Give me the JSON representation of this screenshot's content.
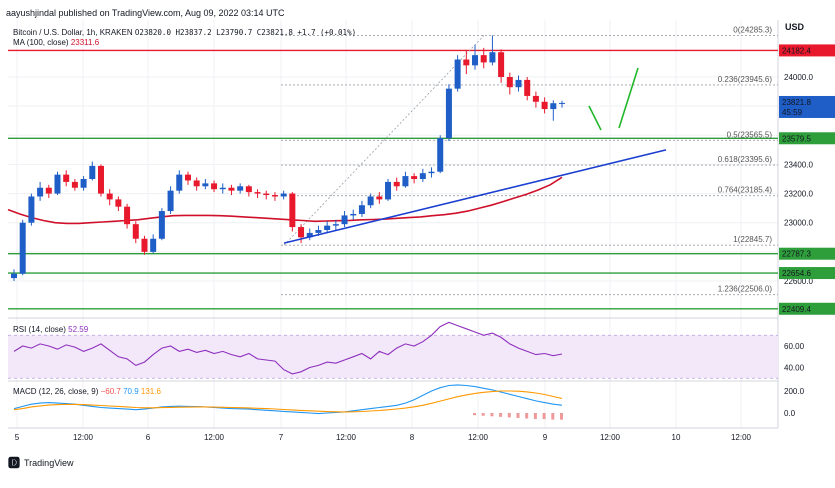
{
  "publisher": "aayushjindal published on TradingView.com, Aug 09, 2022 03:14 UTC",
  "currency": "USD",
  "brand": "TradingView",
  "main_legend": {
    "symbol": "Bitcoin / U.S. Dollar, 1h, KRAKEN",
    "ohlc": "O23820.0 H23837.2 L23790.7 C23821.8 +1.7 (+0.01%)",
    "ma": "MA (100, close)",
    "ma_value": "23311.6"
  },
  "rsi_legend": {
    "name": "RSI (14, close)",
    "value": "52.59"
  },
  "macd_legend": {
    "name": "MACD (12, 26, close, 9)",
    "v1": "−60.7",
    "v2": "70.9",
    "v3": "131.6"
  },
  "price_tag": {
    "value": "23821.8",
    "countdown": "45:59"
  },
  "fib_labels": [
    {
      "ratio": "0",
      "price": "24285.3",
      "value": 24285.3
    },
    {
      "ratio": "0.236",
      "price": "23945.6",
      "value": 23945.6
    },
    {
      "ratio": "0.5",
      "price": "23565.5",
      "value": 23565.5
    },
    {
      "ratio": "0.618",
      "price": "23395.6",
      "value": 23395.6
    },
    {
      "ratio": "0.764",
      "price": "23185.4",
      "value": 23185.4
    },
    {
      "ratio": "1",
      "price": "22845.7",
      "value": 22845.7
    },
    {
      "ratio": "1.236",
      "price": "22506.0",
      "value": 22506.0
    }
  ],
  "resistance_levels": [
    {
      "label": "24182.4",
      "value": 24182.4,
      "color": "#e8192c"
    },
    {
      "label": "23579.5",
      "value": 23579.5,
      "color": "#2e9e3a"
    },
    {
      "label": "22787.3",
      "value": 22787.3,
      "color": "#2e9e3a"
    },
    {
      "label": "22654.6",
      "value": 22654.6,
      "color": "#2e9e3a"
    },
    {
      "label": "22409.4",
      "value": 22409.4,
      "color": "#2e9e3a"
    }
  ],
  "colors": {
    "up": "#1f5ec7",
    "down": "#e8192c",
    "ma": "#d0102a",
    "trend": "#1a3fcf",
    "forecast": "#22b82a",
    "rsi": "#8e2fbd",
    "macd": "#2196f3",
    "signal": "#ff9800"
  },
  "chart_data": {
    "type": "candlestick",
    "price_axis_ticks": [
      "24000.0",
      "23800.0",
      "23600.0",
      "23400.0",
      "23200.0",
      "23000.0",
      "22800.0",
      "22600.0"
    ],
    "price_axis_values": [
      24000,
      23800,
      23600,
      23400,
      23200,
      23000,
      22800,
      22600
    ],
    "time_axis_labels": [
      "5",
      "12:00",
      "6",
      "12:00",
      "7",
      "12:00",
      "8",
      "12:00",
      "9",
      "12:00",
      "10",
      "12:00"
    ],
    "rsi_axis_ticks": [
      "60.00",
      "40.00"
    ],
    "rsi_axis_values": [
      60,
      40
    ],
    "macd_axis_ticks": [
      "200.0",
      "0.0"
    ],
    "macd_axis_values": [
      200,
      0
    ],
    "candles": [
      [
        22620,
        22650,
        22600,
        22680
      ],
      [
        22650,
        23000,
        22640,
        23020
      ],
      [
        23000,
        23180,
        22980,
        23200
      ],
      [
        23180,
        23240,
        23150,
        23280
      ],
      [
        23240,
        23200,
        23170,
        23260
      ],
      [
        23200,
        23330,
        23190,
        23350
      ],
      [
        23330,
        23280,
        23250,
        23360
      ],
      [
        23280,
        23240,
        23220,
        23300
      ],
      [
        23240,
        23300,
        23220,
        23320
      ],
      [
        23300,
        23390,
        23290,
        23420
      ],
      [
        23390,
        23200,
        23180,
        23400
      ],
      [
        23200,
        23160,
        23120,
        23230
      ],
      [
        23160,
        23110,
        23080,
        23180
      ],
      [
        23110,
        22990,
        22960,
        23130
      ],
      [
        22990,
        22890,
        22860,
        23010
      ],
      [
        22890,
        22800,
        22780,
        22910
      ],
      [
        22800,
        22890,
        22790,
        22920
      ],
      [
        22890,
        23080,
        22880,
        23100
      ],
      [
        23080,
        23220,
        23060,
        23250
      ],
      [
        23220,
        23330,
        23200,
        23360
      ],
      [
        23330,
        23290,
        23260,
        23350
      ],
      [
        23290,
        23250,
        23220,
        23310
      ],
      [
        23250,
        23270,
        23230,
        23300
      ],
      [
        23270,
        23230,
        23210,
        23290
      ],
      [
        23230,
        23240,
        23200,
        23270
      ],
      [
        23240,
        23220,
        23190,
        23260
      ],
      [
        23220,
        23250,
        23200,
        23270
      ],
      [
        23250,
        23210,
        23180,
        23260
      ],
      [
        23210,
        23200,
        23170,
        23230
      ],
      [
        23200,
        23190,
        23160,
        23220
      ],
      [
        23190,
        23180,
        23150,
        23210
      ],
      [
        23180,
        23200,
        23160,
        23220
      ],
      [
        23200,
        22970,
        22940,
        23210
      ],
      [
        22970,
        22900,
        22860,
        22990
      ],
      [
        22900,
        22930,
        22880,
        22960
      ],
      [
        22930,
        22950,
        22910,
        22980
      ],
      [
        22950,
        22980,
        22930,
        23010
      ],
      [
        22980,
        22990,
        22950,
        23020
      ],
      [
        22990,
        23050,
        22970,
        23080
      ],
      [
        23050,
        23060,
        23020,
        23090
      ],
      [
        23060,
        23120,
        23040,
        23150
      ],
      [
        23120,
        23180,
        23100,
        23200
      ],
      [
        23180,
        23160,
        23130,
        23210
      ],
      [
        23160,
        23280,
        23150,
        23300
      ],
      [
        23280,
        23250,
        23220,
        23310
      ],
      [
        23250,
        23320,
        23240,
        23350
      ],
      [
        23320,
        23300,
        23270,
        23340
      ],
      [
        23300,
        23340,
        23280,
        23370
      ],
      [
        23340,
        23350,
        23310,
        23380
      ],
      [
        23350,
        23580,
        23340,
        23600
      ],
      [
        23580,
        23920,
        23560,
        23950
      ],
      [
        23920,
        24120,
        23900,
        24150
      ],
      [
        24120,
        24080,
        24020,
        24180
      ],
      [
        24080,
        24150,
        24050,
        24220
      ],
      [
        24150,
        24100,
        24060,
        24200
      ],
      [
        24100,
        24170,
        24080,
        24285
      ],
      [
        24170,
        24000,
        23960,
        24190
      ],
      [
        24000,
        23930,
        23880,
        24030
      ],
      [
        23930,
        23980,
        23900,
        24010
      ],
      [
        23980,
        23870,
        23840,
        24000
      ],
      [
        23870,
        23830,
        23790,
        23900
      ],
      [
        23830,
        23780,
        23750,
        23860
      ],
      [
        23780,
        23820,
        23700,
        23840
      ],
      [
        23820,
        23822,
        23790,
        23837
      ]
    ],
    "ma100": [
      23090,
      23060,
      23035,
      23015,
      23000,
      22995,
      22995,
      23000,
      23005,
      23010,
      23015,
      23020,
      23030,
      23040,
      23048,
      23050,
      23050,
      23050,
      23048,
      23045,
      23040,
      23035,
      23030,
      23025,
      23020,
      23015,
      23010,
      23012,
      23014,
      23016,
      23020,
      23022,
      23025,
      23030,
      23035,
      23040,
      23048,
      23055,
      23065,
      23080,
      23100,
      23120,
      23145,
      23170,
      23195,
      23225,
      23260,
      23311.6
    ],
    "trendline": [
      [
        22860,
        0.0
      ],
      [
        23500,
        1.0
      ]
    ],
    "rsi": [
      55,
      60,
      58,
      62,
      60,
      57,
      61,
      59,
      55,
      58,
      62,
      56,
      50,
      48,
      42,
      45,
      52,
      58,
      60,
      55,
      57,
      54,
      56,
      53,
      55,
      52,
      50,
      53,
      48,
      47,
      46,
      38,
      34,
      36,
      40,
      42,
      45,
      44,
      47,
      50,
      53,
      48,
      55,
      52,
      58,
      62,
      60,
      64,
      70,
      78,
      82,
      79,
      76,
      73,
      70,
      72,
      68,
      62,
      58,
      55,
      52,
      53,
      51,
      52.59
    ],
    "macd": [
      40,
      60,
      80,
      90,
      95,
      90,
      85,
      80,
      70,
      60,
      50,
      45,
      40,
      35,
      30,
      35,
      45,
      55,
      60,
      62,
      60,
      58,
      55,
      50,
      45,
      40,
      38,
      35,
      30,
      25,
      20,
      15,
      10,
      5,
      0,
      -5,
      0,
      5,
      10,
      20,
      30,
      40,
      50,
      60,
      70,
      90,
      120,
      160,
      200,
      230,
      250,
      255,
      250,
      240,
      225,
      210,
      190,
      170,
      150,
      130,
      110,
      95,
      80,
      70.9
    ],
    "signal": [
      30,
      40,
      55,
      65,
      72,
      76,
      78,
      78,
      76,
      72,
      68,
      64,
      60,
      55,
      50,
      47,
      47,
      49,
      51,
      53,
      54,
      55,
      55,
      54,
      52,
      50,
      48,
      46,
      43,
      40,
      36,
      32,
      28,
      24,
      20,
      16,
      13,
      11,
      10,
      11,
      14,
      18,
      23,
      29,
      36,
      45,
      56,
      70,
      88,
      108,
      128,
      148,
      165,
      178,
      188,
      195,
      200,
      200,
      198,
      192,
      182,
      168,
      150,
      131.6
    ],
    "hist": [
      -20,
      -25,
      -30,
      -35,
      -40,
      -45,
      -50,
      -55,
      -55,
      -60,
      -60.7
    ]
  }
}
